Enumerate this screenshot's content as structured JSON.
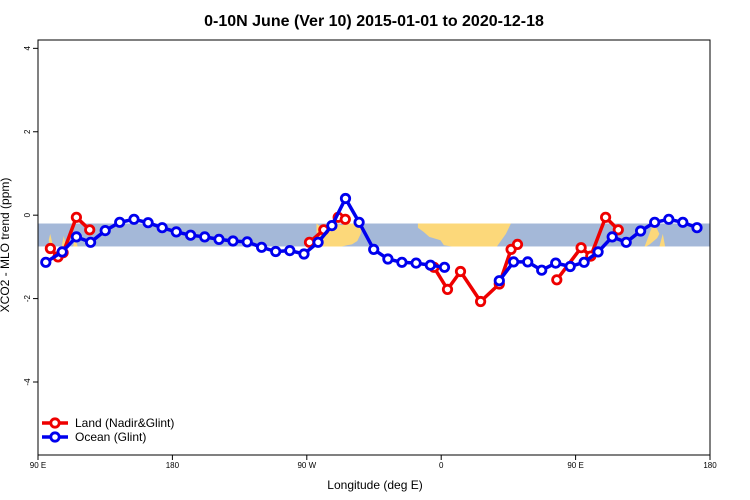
{
  "chart_data": {
    "type": "line",
    "title": "0-10N June (Ver 10)   2015-01-01 to 2020-12-18",
    "xlabel": "Longitude (deg E)",
    "ylabel": "XCO2 - MLO trend (ppm)",
    "x_ticks": [
      {
        "value": 90,
        "label": "90 E"
      },
      {
        "value": 180,
        "label": "180"
      },
      {
        "value": 270,
        "label": "90 W"
      },
      {
        "value": 360,
        "label": "0"
      },
      {
        "value": 450,
        "label": "90 E"
      },
      {
        "value": 540,
        "label": "180"
      }
    ],
    "y_ticks": [
      -4,
      -2,
      0,
      2,
      4
    ],
    "xlim": [
      90,
      540
    ],
    "ylim": [
      -5.75,
      4.2
    ],
    "band": {
      "ymin": -0.75,
      "ymax": -0.2,
      "ocean_color": "#a4b8d8",
      "land_color": "#fcd87a"
    },
    "land_patches": [
      {
        "x": [
          96.2,
          98.2,
          100.2,
          98.2,
          97.2
        ],
        "y": [
          -0.75,
          -0.45,
          -0.75,
          -0.75,
          -0.6
        ]
      },
      {
        "x": [
          105.8,
          107.3,
          108.8
        ],
        "y": [
          -0.75,
          -0.5,
          -0.75
        ]
      },
      {
        "x": [
          113.5,
          115,
          116.5
        ],
        "y": [
          -0.75,
          -0.55,
          -0.75
        ]
      },
      {
        "x": [
          276.5,
          278.3,
          280.6,
          283,
          286,
          289.7,
          293.5,
          296.9,
          300.3,
          303.4,
          306.1,
          307.6,
          306.1,
          303.8,
          300.3,
          296.9,
          293.5,
          289.7,
          286,
          282.6,
          278.7,
          276.5
        ],
        "y": [
          -0.2,
          -0.25,
          -0.3,
          -0.2,
          -0.28,
          -0.2,
          -0.24,
          -0.2,
          -0.2,
          -0.2,
          -0.2,
          -0.2,
          -0.45,
          -0.62,
          -0.7,
          -0.72,
          -0.75,
          -0.75,
          -0.75,
          -0.75,
          -0.75,
          -0.4
        ]
      },
      {
        "x": [
          344.4,
          352,
          359.5,
          367.1,
          374.6,
          382.2,
          389.7,
          397.3,
          403.3,
          406.7,
          403.3,
          397.3,
          389.7,
          382.2,
          374.6,
          367.1,
          361.8,
          359.5,
          352,
          348.2,
          344.4
        ],
        "y": [
          -0.2,
          -0.2,
          -0.2,
          -0.2,
          -0.2,
          -0.2,
          -0.2,
          -0.2,
          -0.2,
          -0.2,
          -0.45,
          -0.75,
          -0.75,
          -0.75,
          -0.75,
          -0.75,
          -0.72,
          -0.6,
          -0.52,
          -0.4,
          -0.3
        ]
      },
      {
        "x": [
          496.2,
          498.9,
          500.4,
          502.3,
          504.2,
          506.1,
          504.6,
          502.3,
          499.6,
          497.3,
          496.2
        ],
        "y": [
          -0.75,
          -0.5,
          -0.35,
          -0.2,
          -0.3,
          -0.45,
          -0.55,
          -0.62,
          -0.7,
          -0.75,
          -0.75
        ]
      },
      {
        "x": [
          506.1,
          508.4,
          509.9,
          508.4
        ],
        "y": [
          -0.75,
          -0.45,
          -0.75,
          -0.75
        ]
      },
      {
        "x": [
          476.5,
          477.3,
          478
        ],
        "y": [
          -0.4,
          -0.25,
          -0.4
        ]
      }
    ],
    "series": [
      {
        "name": "Land (Nadir&Glint)",
        "color": "#ee0000",
        "segments": [
          {
            "x": [
              98.3,
              103.4,
              106.8,
              115.7,
              124.6
            ],
            "y": [
              -0.8,
              -1.0,
              -0.9,
              -0.05,
              -0.35
            ]
          },
          {
            "x": [
              271.8,
              281.4,
              291.0,
              295.8
            ],
            "y": [
              -0.65,
              -0.35,
              -0.05,
              -0.1
            ]
          },
          {
            "x": [
              355.2,
              364.2,
              372.9,
              386.4,
              398.9,
              406.8,
              411.1
            ],
            "y": [
              -1.25,
              -1.78,
              -1.35,
              -2.07,
              -1.65,
              -0.82,
              -0.7
            ]
          },
          {
            "x": [
              437.4,
              453.7,
              460.2,
              470.1,
              478.6
            ],
            "y": [
              -1.55,
              -0.78,
              -0.98,
              -0.05,
              -0.35
            ]
          }
        ]
      },
      {
        "name": "Ocean (Glint)",
        "color": "#0000ee",
        "segments": [
          {
            "x": [
              95.2,
              106.2,
              115.7,
              125.2,
              135.0,
              144.7,
              154.3,
              163.7,
              173.2,
              182.6,
              192.2,
              201.6,
              211.2,
              220.6,
              230.1,
              239.7,
              249.2,
              258.6,
              268.1,
              277.6,
              286.8,
              295.9,
              305.0,
              314.8,
              324.3,
              333.7,
              343.2,
              352.8,
              362.2
            ],
            "y": [
              -1.13,
              -0.88,
              -0.52,
              -0.65,
              -0.37,
              -0.17,
              -0.1,
              -0.18,
              -0.3,
              -0.4,
              -0.48,
              -0.52,
              -0.58,
              -0.62,
              -0.64,
              -0.77,
              -0.87,
              -0.85,
              -0.93,
              -0.65,
              -0.25,
              0.4,
              -0.17,
              -0.82,
              -1.05,
              -1.13,
              -1.15,
              -1.2,
              -1.25
            ]
          },
          {
            "x": [
              398.9,
              408.5,
              417.9,
              427.3,
              436.7,
              446.4,
              455.7,
              465.1,
              474.5,
              483.9,
              493.5,
              503.0,
              512.4,
              521.8,
              531.3
            ],
            "y": [
              -1.57,
              -1.12,
              -1.12,
              -1.32,
              -1.15,
              -1.23,
              -1.13,
              -0.88,
              -0.52,
              -0.65,
              -0.38,
              -0.17,
              -0.1,
              -0.17,
              -0.3
            ]
          }
        ]
      }
    ],
    "legend": {
      "position": "bottom-left"
    },
    "grid": false
  }
}
